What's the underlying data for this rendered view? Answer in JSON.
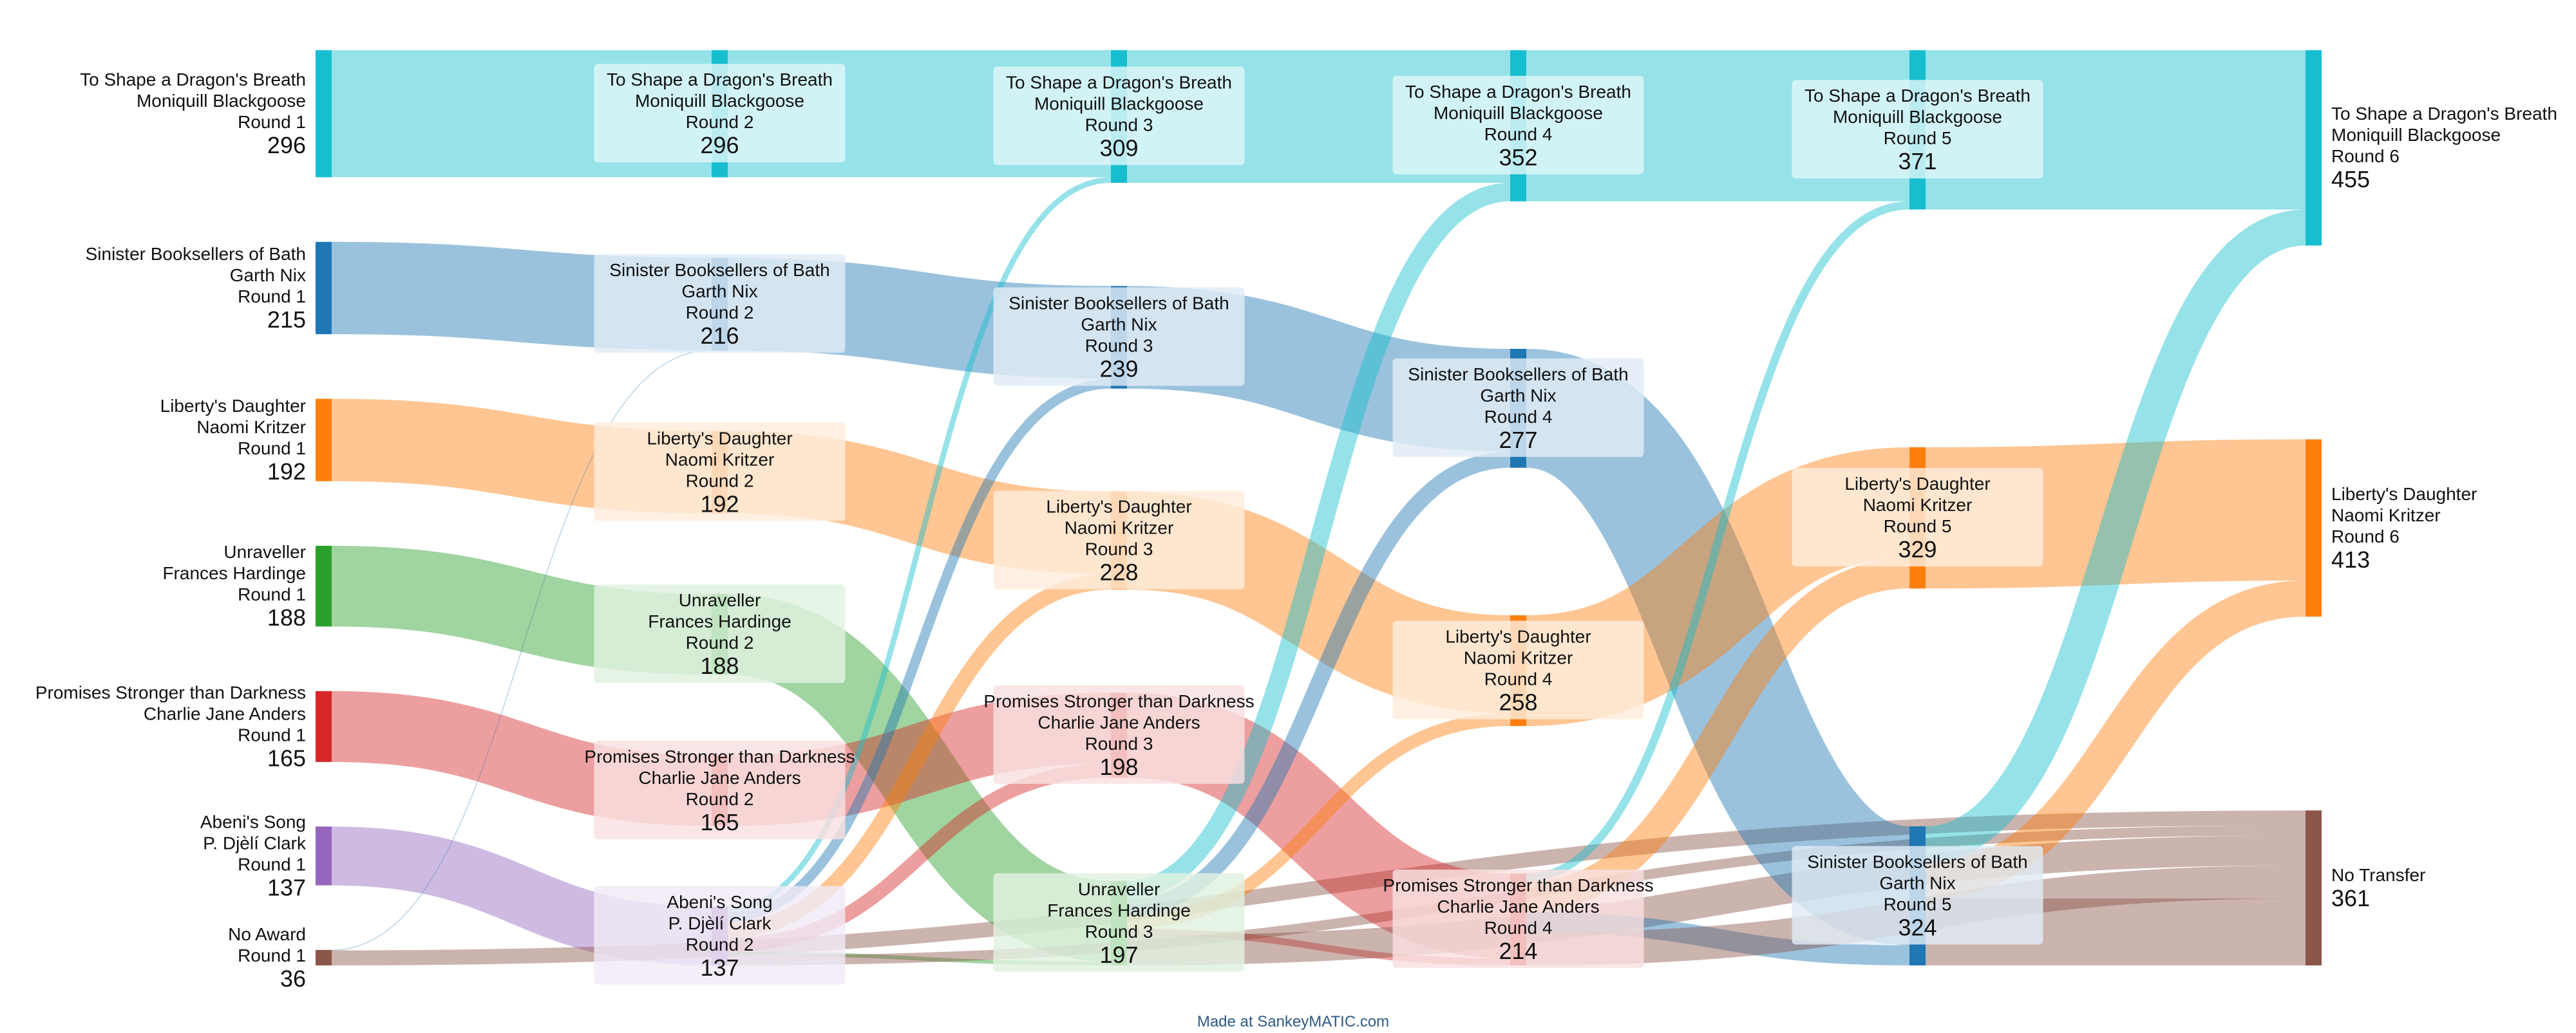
{
  "colors": {
    "To Shape a Dragon's Breath": "#17becf",
    "Sinister Booksellers of Bath": "#1f77b4",
    "Liberty's Daughter": "#ff7f0e",
    "Unraveller": "#2ca02c",
    "Promises Stronger than Darkness": "#d62728",
    "Abeni's Song": "#9467bd",
    "No Award": "#8c564b",
    "No Transfer": "#8c564b"
  },
  "credit": "Made at SankeyMATIC.com",
  "rounds": [
    {
      "round": 1,
      "nodes": [
        {
          "key": "To Shape a Dragon's Breath",
          "lines": [
            "To Shape a Dragon's Breath",
            "Moniquill Blackgoose",
            "Round 1"
          ],
          "value": 296
        },
        {
          "key": "Sinister Booksellers of Bath",
          "lines": [
            "Sinister Booksellers of Bath",
            "Garth Nix",
            "Round 1"
          ],
          "value": 215
        },
        {
          "key": "Liberty's Daughter",
          "lines": [
            "Liberty's Daughter",
            "Naomi Kritzer",
            "Round 1"
          ],
          "value": 192
        },
        {
          "key": "Unraveller",
          "lines": [
            "Unraveller",
            "Frances Hardinge",
            "Round 1"
          ],
          "value": 188
        },
        {
          "key": "Promises Stronger than Darkness",
          "lines": [
            "Promises Stronger than Darkness",
            "Charlie Jane Anders",
            "Round 1"
          ],
          "value": 165
        },
        {
          "key": "Abeni's Song",
          "lines": [
            "Abeni's Song",
            "P. Djèlí Clark",
            "Round 1"
          ],
          "value": 137
        },
        {
          "key": "No Award",
          "lines": [
            "No Award",
            "Round 1"
          ],
          "value": 36
        }
      ]
    },
    {
      "round": 2,
      "nodes": [
        {
          "key": "To Shape a Dragon's Breath",
          "lines": [
            "To Shape a Dragon's Breath",
            "Moniquill Blackgoose",
            "Round 2"
          ],
          "value": 296
        },
        {
          "key": "Sinister Booksellers of Bath",
          "lines": [
            "Sinister Booksellers of Bath",
            "Garth Nix",
            "Round 2"
          ],
          "value": 216
        },
        {
          "key": "Liberty's Daughter",
          "lines": [
            "Liberty's Daughter",
            "Naomi Kritzer",
            "Round 2"
          ],
          "value": 192
        },
        {
          "key": "Unraveller",
          "lines": [
            "Unraveller",
            "Frances Hardinge",
            "Round 2"
          ],
          "value": 188
        },
        {
          "key": "Promises Stronger than Darkness",
          "lines": [
            "Promises Stronger than Darkness",
            "Charlie Jane Anders",
            "Round 2"
          ],
          "value": 165
        },
        {
          "key": "Abeni's Song",
          "lines": [
            "Abeni's Song",
            "P. Djèlí Clark",
            "Round 2"
          ],
          "value": 137
        }
      ]
    },
    {
      "round": 3,
      "nodes": [
        {
          "key": "To Shape a Dragon's Breath",
          "lines": [
            "To Shape a Dragon's Breath",
            "Moniquill Blackgoose",
            "Round 3"
          ],
          "value": 309
        },
        {
          "key": "Sinister Booksellers of Bath",
          "lines": [
            "Sinister Booksellers of Bath",
            "Garth Nix",
            "Round 3"
          ],
          "value": 239
        },
        {
          "key": "Liberty's Daughter",
          "lines": [
            "Liberty's Daughter",
            "Naomi Kritzer",
            "Round 3"
          ],
          "value": 228
        },
        {
          "key": "Promises Stronger than Darkness",
          "lines": [
            "Promises Stronger than Darkness",
            "Charlie Jane Anders",
            "Round 3"
          ],
          "value": 198
        },
        {
          "key": "Unraveller",
          "lines": [
            "Unraveller",
            "Frances Hardinge",
            "Round 3"
          ],
          "value": 197
        }
      ]
    },
    {
      "round": 4,
      "nodes": [
        {
          "key": "To Shape a Dragon's Breath",
          "lines": [
            "To Shape a Dragon's Breath",
            "Moniquill Blackgoose",
            "Round 4"
          ],
          "value": 352
        },
        {
          "key": "Sinister Booksellers of Bath",
          "lines": [
            "Sinister Booksellers of Bath",
            "Garth Nix",
            "Round 4"
          ],
          "value": 277
        },
        {
          "key": "Liberty's Daughter",
          "lines": [
            "Liberty's Daughter",
            "Naomi Kritzer",
            "Round 4"
          ],
          "value": 258
        },
        {
          "key": "Promises Stronger than Darkness",
          "lines": [
            "Promises Stronger than Darkness",
            "Charlie Jane Anders",
            "Round 4"
          ],
          "value": 214
        }
      ]
    },
    {
      "round": 5,
      "nodes": [
        {
          "key": "To Shape a Dragon's Breath",
          "lines": [
            "To Shape a Dragon's Breath",
            "Moniquill Blackgoose",
            "Round 5"
          ],
          "value": 371
        },
        {
          "key": "Liberty's Daughter",
          "lines": [
            "Liberty's Daughter",
            "Naomi Kritzer",
            "Round 5"
          ],
          "value": 329
        },
        {
          "key": "Sinister Booksellers of Bath",
          "lines": [
            "Sinister Booksellers of Bath",
            "Garth Nix",
            "Round 5"
          ],
          "value": 324
        }
      ]
    },
    {
      "round": 6,
      "nodes": [
        {
          "key": "To Shape a Dragon's Breath",
          "lines": [
            "To Shape a Dragon's Breath",
            "Moniquill Blackgoose",
            "Round 6"
          ],
          "value": 455
        },
        {
          "key": "Liberty's Daughter",
          "lines": [
            "Liberty's Daughter",
            "Naomi Kritzer",
            "Round 6"
          ],
          "value": 413
        },
        {
          "key": "No Transfer",
          "lines": [
            "No Transfer"
          ],
          "value": 361
        }
      ]
    }
  ],
  "flows": [
    {
      "from": [
        1,
        "To Shape a Dragon's Breath"
      ],
      "to": [
        2,
        "To Shape a Dragon's Breath"
      ],
      "value": 296
    },
    {
      "from": [
        1,
        "Sinister Booksellers of Bath"
      ],
      "to": [
        2,
        "Sinister Booksellers of Bath"
      ],
      "value": 215
    },
    {
      "from": [
        1,
        "Liberty's Daughter"
      ],
      "to": [
        2,
        "Liberty's Daughter"
      ],
      "value": 192
    },
    {
      "from": [
        1,
        "Unraveller"
      ],
      "to": [
        2,
        "Unraveller"
      ],
      "value": 188
    },
    {
      "from": [
        1,
        "Promises Stronger than Darkness"
      ],
      "to": [
        2,
        "Promises Stronger than Darkness"
      ],
      "value": 165
    },
    {
      "from": [
        1,
        "Abeni's Song"
      ],
      "to": [
        2,
        "Abeni's Song"
      ],
      "value": 137
    },
    {
      "from": [
        1,
        "No Award"
      ],
      "to": [
        2,
        "Sinister Booksellers of Bath"
      ],
      "value": 1
    },
    {
      "from": [
        1,
        "No Award"
      ],
      "to": [
        6,
        "No Transfer"
      ],
      "value": 35
    },
    {
      "from": [
        2,
        "To Shape a Dragon's Breath"
      ],
      "to": [
        3,
        "To Shape a Dragon's Breath"
      ],
      "value": 296
    },
    {
      "from": [
        2,
        "Sinister Booksellers of Bath"
      ],
      "to": [
        3,
        "Sinister Booksellers of Bath"
      ],
      "value": 216
    },
    {
      "from": [
        2,
        "Liberty's Daughter"
      ],
      "to": [
        3,
        "Liberty's Daughter"
      ],
      "value": 192
    },
    {
      "from": [
        2,
        "Unraveller"
      ],
      "to": [
        3,
        "Unraveller"
      ],
      "value": 188
    },
    {
      "from": [
        2,
        "Promises Stronger than Darkness"
      ],
      "to": [
        3,
        "Promises Stronger than Darkness"
      ],
      "value": 165
    },
    {
      "from": [
        2,
        "Abeni's Song"
      ],
      "to": [
        3,
        "To Shape a Dragon's Breath"
      ],
      "value": 13
    },
    {
      "from": [
        2,
        "Abeni's Song"
      ],
      "to": [
        3,
        "Sinister Booksellers of Bath"
      ],
      "value": 23
    },
    {
      "from": [
        2,
        "Abeni's Song"
      ],
      "to": [
        3,
        "Liberty's Daughter"
      ],
      "value": 36
    },
    {
      "from": [
        2,
        "Abeni's Song"
      ],
      "to": [
        3,
        "Promises Stronger than Darkness"
      ],
      "value": 33
    },
    {
      "from": [
        2,
        "Abeni's Song"
      ],
      "to": [
        3,
        "Unraveller"
      ],
      "value": 9
    },
    {
      "from": [
        2,
        "Abeni's Song"
      ],
      "to": [
        6,
        "No Transfer"
      ],
      "value": 23
    },
    {
      "from": [
        3,
        "To Shape a Dragon's Breath"
      ],
      "to": [
        4,
        "To Shape a Dragon's Breath"
      ],
      "value": 309
    },
    {
      "from": [
        3,
        "Sinister Booksellers of Bath"
      ],
      "to": [
        4,
        "Sinister Booksellers of Bath"
      ],
      "value": 239
    },
    {
      "from": [
        3,
        "Liberty's Daughter"
      ],
      "to": [
        4,
        "Liberty's Daughter"
      ],
      "value": 228
    },
    {
      "from": [
        3,
        "Promises Stronger than Darkness"
      ],
      "to": [
        4,
        "Promises Stronger than Darkness"
      ],
      "value": 198
    },
    {
      "from": [
        3,
        "Unraveller"
      ],
      "to": [
        4,
        "To Shape a Dragon's Breath"
      ],
      "value": 43
    },
    {
      "from": [
        3,
        "Unraveller"
      ],
      "to": [
        4,
        "Sinister Booksellers of Bath"
      ],
      "value": 38
    },
    {
      "from": [
        3,
        "Unraveller"
      ],
      "to": [
        4,
        "Liberty's Daughter"
      ],
      "value": 30
    },
    {
      "from": [
        3,
        "Unraveller"
      ],
      "to": [
        4,
        "Promises Stronger than Darkness"
      ],
      "value": 16
    },
    {
      "from": [
        3,
        "Unraveller"
      ],
      "to": [
        6,
        "No Transfer"
      ],
      "value": 70
    },
    {
      "from": [
        4,
        "To Shape a Dragon's Breath"
      ],
      "to": [
        5,
        "To Shape a Dragon's Breath"
      ],
      "value": 352
    },
    {
      "from": [
        4,
        "Sinister Booksellers of Bath"
      ],
      "to": [
        5,
        "Sinister Booksellers of Bath"
      ],
      "value": 277
    },
    {
      "from": [
        4,
        "Liberty's Daughter"
      ],
      "to": [
        5,
        "Liberty's Daughter"
      ],
      "value": 258
    },
    {
      "from": [
        4,
        "Promises Stronger than Darkness"
      ],
      "to": [
        5,
        "To Shape a Dragon's Breath"
      ],
      "value": 19
    },
    {
      "from": [
        4,
        "Promises Stronger than Darkness"
      ],
      "to": [
        5,
        "Liberty's Daughter"
      ],
      "value": 71
    },
    {
      "from": [
        4,
        "Promises Stronger than Darkness"
      ],
      "to": [
        5,
        "Sinister Booksellers of Bath"
      ],
      "value": 47
    },
    {
      "from": [
        4,
        "Promises Stronger than Darkness"
      ],
      "to": [
        6,
        "No Transfer"
      ],
      "value": 77
    },
    {
      "from": [
        5,
        "To Shape a Dragon's Breath"
      ],
      "to": [
        6,
        "To Shape a Dragon's Breath"
      ],
      "value": 371
    },
    {
      "from": [
        5,
        "Liberty's Daughter"
      ],
      "to": [
        6,
        "Liberty's Daughter"
      ],
      "value": 329
    },
    {
      "from": [
        5,
        "Sinister Booksellers of Bath"
      ],
      "to": [
        6,
        "To Shape a Dragon's Breath"
      ],
      "value": 84
    },
    {
      "from": [
        5,
        "Sinister Booksellers of Bath"
      ],
      "to": [
        6,
        "Liberty's Daughter"
      ],
      "value": 84
    },
    {
      "from": [
        5,
        "Sinister Booksellers of Bath"
      ],
      "to": [
        6,
        "No Transfer"
      ],
      "value": 156
    }
  ]
}
